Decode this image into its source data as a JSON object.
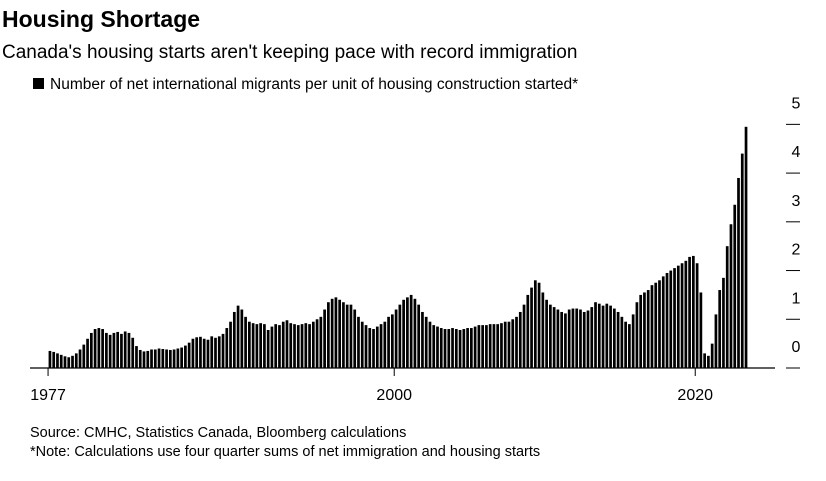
{
  "chart_data": {
    "type": "bar",
    "title": "Housing Shortage",
    "subtitle": "Canada's housing starts aren't keeping pace with record immigration",
    "source": "Source: CMHC, Statistics Canada, Bloomberg calculations",
    "note": "*Note: Calculations use four quarter sums of net immigration and housing starts",
    "series": [
      {
        "name": "Number of net international migrants per unit of housing construction started*",
        "color": "#000000",
        "values": [
          0.35,
          0.33,
          0.3,
          0.27,
          0.24,
          0.22,
          0.25,
          0.3,
          0.38,
          0.48,
          0.6,
          0.72,
          0.8,
          0.82,
          0.8,
          0.72,
          0.68,
          0.72,
          0.74,
          0.7,
          0.75,
          0.72,
          0.62,
          0.45,
          0.37,
          0.34,
          0.35,
          0.38,
          0.38,
          0.4,
          0.39,
          0.38,
          0.37,
          0.38,
          0.4,
          0.42,
          0.46,
          0.52,
          0.6,
          0.63,
          0.64,
          0.6,
          0.58,
          0.65,
          0.62,
          0.65,
          0.7,
          0.82,
          0.95,
          1.15,
          1.28,
          1.2,
          1.05,
          0.95,
          0.92,
          0.9,
          0.92,
          0.9,
          0.78,
          0.85,
          0.9,
          0.88,
          0.95,
          0.98,
          0.92,
          0.9,
          0.88,
          0.9,
          0.92,
          0.9,
          0.95,
          1.0,
          1.05,
          1.2,
          1.35,
          1.42,
          1.45,
          1.4,
          1.35,
          1.3,
          1.3,
          1.2,
          1.05,
          0.95,
          0.88,
          0.82,
          0.8,
          0.85,
          0.9,
          0.95,
          1.05,
          1.1,
          1.2,
          1.3,
          1.4,
          1.45,
          1.5,
          1.42,
          1.3,
          1.15,
          1.05,
          0.95,
          0.88,
          0.85,
          0.82,
          0.8,
          0.8,
          0.82,
          0.8,
          0.78,
          0.8,
          0.82,
          0.82,
          0.85,
          0.88,
          0.88,
          0.88,
          0.9,
          0.9,
          0.9,
          0.92,
          0.95,
          0.95,
          1.0,
          1.05,
          1.15,
          1.3,
          1.5,
          1.65,
          1.8,
          1.75,
          1.55,
          1.4,
          1.3,
          1.25,
          1.2,
          1.15,
          1.12,
          1.2,
          1.22,
          1.22,
          1.2,
          1.15,
          1.18,
          1.25,
          1.35,
          1.32,
          1.28,
          1.32,
          1.28,
          1.22,
          1.15,
          1.05,
          0.95,
          0.9,
          1.1,
          1.35,
          1.5,
          1.55,
          1.6,
          1.7,
          1.75,
          1.8,
          1.88,
          1.95,
          2.0,
          2.05,
          2.1,
          2.15,
          2.2,
          2.28,
          2.3,
          2.15,
          1.55,
          0.3,
          0.25,
          0.5,
          1.1,
          1.6,
          1.85,
          2.5,
          2.95,
          3.35,
          3.9,
          4.4,
          4.95
        ]
      }
    ],
    "x": [
      1977,
      1977.25,
      1977.5,
      1977.75,
      1978,
      1978.25,
      1978.5,
      1978.75,
      1979,
      1979.25,
      1979.5,
      1979.75,
      1980,
      1980.25,
      1980.5,
      1980.75,
      1981,
      1981.25,
      1981.5,
      1981.75,
      1982,
      1982.25,
      1982.5,
      1982.75,
      1983,
      1983.25,
      1983.5,
      1983.75,
      1984,
      1984.25,
      1984.5,
      1984.75,
      1985,
      1985.25,
      1985.5,
      1985.75,
      1986,
      1986.25,
      1986.5,
      1986.75,
      1987,
      1987.25,
      1987.5,
      1987.75,
      1988,
      1988.25,
      1988.5,
      1988.75,
      1989,
      1989.25,
      1989.5,
      1989.75,
      1990,
      1990.25,
      1990.5,
      1990.75,
      1991,
      1991.25,
      1991.5,
      1991.75,
      1992,
      1992.25,
      1992.5,
      1992.75,
      1993,
      1993.25,
      1993.5,
      1993.75,
      1994,
      1994.25,
      1994.5,
      1994.75,
      1995,
      1995.25,
      1995.5,
      1995.75,
      1996,
      1996.25,
      1996.5,
      1996.75,
      1997,
      1997.25,
      1997.5,
      1997.75,
      1998,
      1998.25,
      1998.5,
      1998.75,
      1999,
      1999.25,
      1999.5,
      1999.75,
      2000,
      2000.25,
      2000.5,
      2000.75,
      2001,
      2001.25,
      2001.5,
      2001.75,
      2002,
      2002.25,
      2002.5,
      2002.75,
      2003,
      2003.25,
      2003.5,
      2003.75,
      2004,
      2004.25,
      2004.5,
      2004.75,
      2005,
      2005.25,
      2005.5,
      2005.75,
      2006,
      2006.25,
      2006.5,
      2006.75,
      2007,
      2007.25,
      2007.5,
      2007.75,
      2008,
      2008.25,
      2008.5,
      2008.75,
      2009,
      2009.25,
      2009.5,
      2009.75,
      2010,
      2010.25,
      2010.5,
      2010.75,
      2011,
      2011.25,
      2011.5,
      2011.75,
      2012,
      2012.25,
      2012.5,
      2012.75,
      2013,
      2013.25,
      2013.5,
      2013.75,
      2014,
      2014.25,
      2014.5,
      2014.75,
      2015,
      2015.25,
      2015.5,
      2015.75,
      2016,
      2016.25,
      2016.5,
      2016.75,
      2017,
      2017.25,
      2017.5,
      2017.75,
      2018,
      2018.25,
      2018.5,
      2018.75,
      2019,
      2019.25,
      2019.5,
      2019.75,
      2020,
      2020.25,
      2020.5,
      2020.75,
      2021,
      2021.25,
      2021.5,
      2021.75,
      2022,
      2022.25,
      2022.5,
      2022.75,
      2023,
      2023.25
    ],
    "xlim": [
      1975.8,
      2025.3
    ],
    "xticks": [
      1977,
      2000,
      2020
    ],
    "ylim": [
      0,
      5.5
    ],
    "yticks": [
      0,
      1,
      2,
      3,
      4,
      5
    ]
  }
}
